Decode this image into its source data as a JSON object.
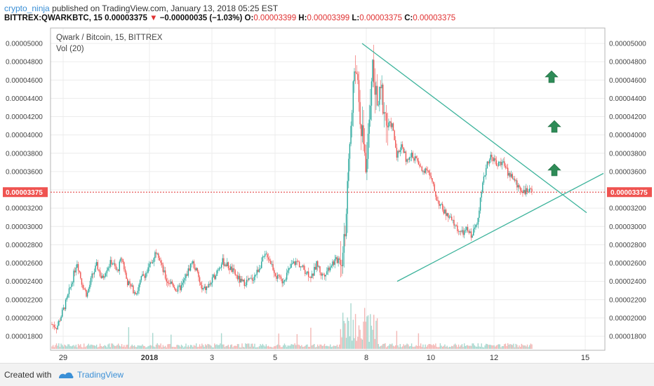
{
  "header": {
    "user": "crypto_ninja",
    "published": "published on TradingView.com, January 13, 2018 05:25 EST",
    "ticker": "BITTREX:QWARKBTC, 15",
    "last": "0.00003375",
    "change_arrow": "▼",
    "change": "−0.00000035 (−1.03%)",
    "o_label": "O:",
    "o": "0.00003399",
    "h_label": "H:",
    "h": "0.00003399",
    "l_label": "L:",
    "l": "0.00003375",
    "c_label": "C:",
    "c": "0.00003375"
  },
  "chart": {
    "symbol_label": "Qwark / Bitcoin, 15, BITTREX",
    "vol_label": "Vol (20)",
    "current_price_tag": "0.00003375"
  },
  "footer": {
    "created_with": "Created with",
    "brand": "TradingView"
  },
  "colors": {
    "up": "#26a69a",
    "down": "#ef5350",
    "trendline": "#3cb39b",
    "price_line": "#e03131",
    "arrow": "#2e8b57"
  },
  "icons": [
    "tradingview-logo-icon",
    "up-arrow-icon"
  ],
  "chart_data": {
    "type": "candlestick",
    "y_axis": {
      "range": [
        1.7e-05,
        5.12e-05
      ],
      "ticks": [
        "0.00005000",
        "0.00004800",
        "0.00004600",
        "0.00004400",
        "0.00004200",
        "0.00004000",
        "0.00003800",
        "0.00003600",
        "0.00003400",
        "0.00003200",
        "0.00003000",
        "0.00002800",
        "0.00002600",
        "0.00002400",
        "0.00002200",
        "0.00002000",
        "0.00001800"
      ]
    },
    "x_axis": {
      "ticks": [
        "29",
        "2018",
        "3",
        "5",
        "8",
        "8",
        "10",
        "12",
        "15"
      ]
    },
    "current_price": 3.375e-05,
    "price_path": [
      [
        0,
        1.93
      ],
      [
        2,
        1.9
      ],
      [
        3,
        2.05
      ],
      [
        4,
        2.2
      ],
      [
        5,
        2.4
      ],
      [
        6,
        2.62
      ],
      [
        7,
        2.38
      ],
      [
        8,
        2.25
      ],
      [
        9,
        2.45
      ],
      [
        10,
        2.58
      ],
      [
        11,
        2.42
      ],
      [
        12,
        2.55
      ],
      [
        13,
        2.62
      ],
      [
        14,
        2.5
      ],
      [
        15,
        2.66
      ],
      [
        16,
        2.4
      ],
      [
        17,
        2.32
      ],
      [
        18,
        2.28
      ],
      [
        19,
        2.45
      ],
      [
        20,
        2.5
      ],
      [
        21,
        2.62
      ],
      [
        22,
        2.76
      ],
      [
        23,
        2.55
      ],
      [
        24,
        2.4
      ],
      [
        25,
        2.38
      ],
      [
        26,
        2.3
      ],
      [
        27,
        2.35
      ],
      [
        28,
        2.48
      ],
      [
        29,
        2.62
      ],
      [
        30,
        2.5
      ],
      [
        31,
        2.3
      ],
      [
        32,
        2.33
      ],
      [
        33,
        2.4
      ],
      [
        34,
        2.52
      ],
      [
        35,
        2.62
      ],
      [
        36,
        2.58
      ],
      [
        37,
        2.52
      ],
      [
        38,
        2.45
      ],
      [
        39,
        2.38
      ],
      [
        40,
        2.4
      ],
      [
        41,
        2.42
      ],
      [
        42,
        2.5
      ],
      [
        43,
        2.62
      ],
      [
        44,
        2.7
      ],
      [
        45,
        2.58
      ],
      [
        46,
        2.44
      ],
      [
        47,
        2.4
      ],
      [
        48,
        2.48
      ],
      [
        49,
        2.58
      ],
      [
        50,
        2.62
      ],
      [
        51,
        2.55
      ],
      [
        52,
        2.5
      ],
      [
        53,
        2.45
      ],
      [
        54,
        2.6
      ],
      [
        55,
        2.46
      ],
      [
        56,
        2.52
      ],
      [
        57,
        2.6
      ],
      [
        58,
        2.63
      ],
      [
        59,
        2.7
      ],
      [
        60,
        3.2
      ],
      [
        61,
        4.4
      ],
      [
        62,
        4.7
      ],
      [
        63,
        4.05
      ],
      [
        64,
        3.6
      ],
      [
        65,
        4.8
      ],
      [
        66,
        4.3
      ],
      [
        67,
        4.45
      ],
      [
        68,
        4.1
      ],
      [
        69,
        4.12
      ],
      [
        70,
        3.78
      ],
      [
        71,
        3.9
      ],
      [
        72,
        3.7
      ],
      [
        73,
        3.78
      ],
      [
        74,
        3.72
      ],
      [
        75,
        3.6
      ],
      [
        76,
        3.65
      ],
      [
        77,
        3.48
      ],
      [
        78,
        3.3
      ],
      [
        79,
        3.2
      ],
      [
        80,
        3.12
      ],
      [
        81,
        3.06
      ],
      [
        82,
        2.98
      ],
      [
        83,
        2.92
      ],
      [
        84,
        2.96
      ],
      [
        85,
        2.9
      ],
      [
        86,
        3.05
      ],
      [
        87,
        3.4
      ],
      [
        88,
        3.7
      ],
      [
        89,
        3.78
      ],
      [
        90,
        3.66
      ],
      [
        91,
        3.72
      ],
      [
        92,
        3.6
      ],
      [
        93,
        3.55
      ],
      [
        94,
        3.45
      ],
      [
        95,
        3.4
      ],
      [
        96,
        3.38
      ],
      [
        97,
        3.375
      ]
    ],
    "price_path_unit": "1e-5 BTC",
    "trendlines": [
      {
        "name": "upper-trendline",
        "from": [
          5e-05,
          "8"
        ],
        "to": [
          3.15e-05,
          "15"
        ]
      },
      {
        "name": "lower-trendline",
        "from": [
          2.4e-05,
          "9"
        ],
        "to": [
          3.6e-05,
          "16"
        ]
      }
    ],
    "volume": {
      "label": "Vol (20)"
    },
    "grid": true
  }
}
